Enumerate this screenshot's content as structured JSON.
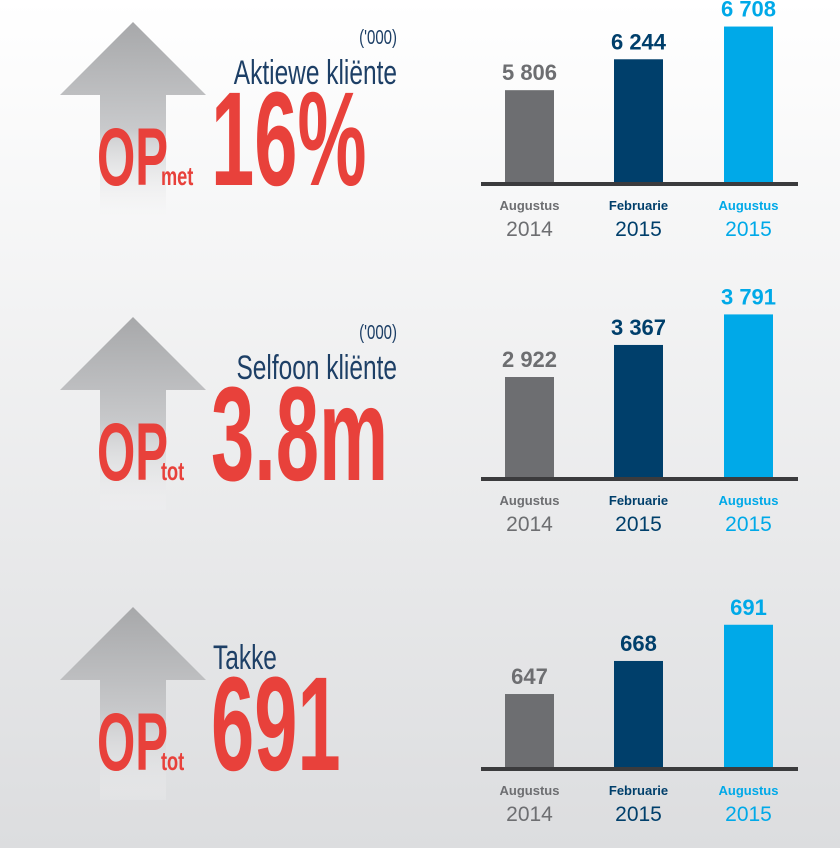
{
  "chart_data": [
    {
      "type": "bar",
      "unit": "('000)",
      "label": "Aktiewe kliënte",
      "prefix": "OP",
      "connector": "met",
      "headline": "16%",
      "categories": [
        [
          "Augustus",
          "2014"
        ],
        [
          "Februarie",
          "2015"
        ],
        [
          "Augustus",
          "2015"
        ]
      ],
      "values": [
        5806,
        6244,
        6708
      ],
      "value_labels": [
        "5 806",
        "6 244",
        "6 708"
      ],
      "colors": [
        "#6d6e71",
        "#003f6b",
        "#00a9e8"
      ],
      "ylim": [
        4490,
        6900
      ]
    },
    {
      "type": "bar",
      "unit": "('000)",
      "label": "Selfoon kliënte",
      "prefix": "OP",
      "connector": "tot",
      "headline": "3.8m",
      "categories": [
        [
          "Augustus",
          "2014"
        ],
        [
          "Februarie",
          "2015"
        ],
        [
          "Augustus",
          "2015"
        ]
      ],
      "values": [
        2922,
        3367,
        3791
      ],
      "value_labels": [
        "2 922",
        "3 367",
        "3 791"
      ],
      "colors": [
        "#6d6e71",
        "#003f6b",
        "#00a9e8"
      ],
      "ylim": [
        1520,
        3880
      ]
    },
    {
      "type": "bar",
      "label": "Takke",
      "prefix": "OP",
      "connector": "tot",
      "headline": "691",
      "categories": [
        [
          "Augustus",
          "2014"
        ],
        [
          "Februarie",
          "2015"
        ],
        [
          "Augustus",
          "2015"
        ]
      ],
      "values": [
        647,
        668,
        691
      ],
      "colors": [
        "#6d6e71",
        "#003f6b",
        "#00a9e8"
      ],
      "ylim": [
        600,
        708
      ]
    }
  ]
}
